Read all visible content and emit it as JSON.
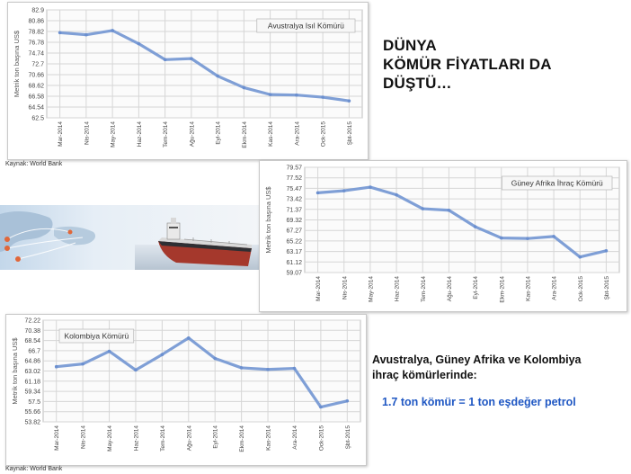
{
  "headline": [
    "DÜNYA",
    "KÖMÜR FİYATLARI DA",
    "DÜŞTÜ…"
  ],
  "note": [
    "Avustralya, Güney Afrika ve Kolombiya",
    "ihraç kömürlerinde:"
  ],
  "equation": "1.7 ton kömür = 1 ton eşdeğer petrol",
  "colors": {
    "line": "#7f9fd6",
    "equation": "#1f57c3",
    "grid": "#d6d6d6",
    "plot_bg": "#fbfbfb"
  },
  "chart_data": [
    {
      "type": "line",
      "title": "Avustralya Isıl Kömürü",
      "ylabel": "Metrik ton başına US$",
      "source": "Kaynak: World Bank",
      "x": [
        "Mar-2014",
        "Nis-2014",
        "May-2014",
        "Haz-2014",
        "Tem-2014",
        "Ağu-2014",
        "Eyl-2014",
        "Ekm-2014",
        "Kas-2014",
        "Ara-2014",
        "Ock-2015",
        "Şbt-2015"
      ],
      "yticks": [
        "82.9",
        "80.86",
        "78.82",
        "76.78",
        "74.74",
        "72.7",
        "70.66",
        "68.62",
        "66.58",
        "64.54",
        "62.5"
      ],
      "ylim": [
        62.5,
        82.9
      ],
      "values": [
        78.6,
        78.2,
        79.0,
        76.5,
        73.5,
        73.7,
        70.4,
        68.2,
        66.9,
        66.8,
        66.4,
        65.7
      ],
      "grid": true,
      "legend": "top-right"
    },
    {
      "type": "line",
      "title": "Güney Afrika İhraç Kömürü",
      "ylabel": "Metrik ton başına US$",
      "x": [
        "Mar-2014",
        "Nis-2014",
        "May-2014",
        "Haz-2014",
        "Tem-2014",
        "Ağu-2014",
        "Eyl-2014",
        "Ekm-2014",
        "Kas-2014",
        "Ara-2014",
        "Ock-2015",
        "Şbt-2015"
      ],
      "yticks": [
        "79.57",
        "77.52",
        "75.47",
        "73.42",
        "71.37",
        "69.32",
        "67.27",
        "65.22",
        "63.17",
        "61.12",
        "59.07"
      ],
      "ylim": [
        59.07,
        79.57
      ],
      "values": [
        74.6,
        75.0,
        75.7,
        74.2,
        71.5,
        71.2,
        68.0,
        65.8,
        65.7,
        66.1,
        62.1,
        63.3
      ],
      "grid": true,
      "legend": "top-right"
    },
    {
      "type": "line",
      "title": "Kolombiya Kömürü",
      "ylabel": "Metrik ton başına US$",
      "source": "Kaynak: World Bank",
      "x": [
        "Mar-2014",
        "Nis-2014",
        "May-2014",
        "Haz-2014",
        "Tem-2014",
        "Ağu-2014",
        "Eyl-2014",
        "Ekm-2014",
        "Kas-2014",
        "Ara-2014",
        "Ock-2015",
        "Şbt-2015"
      ],
      "yticks": [
        "72.22",
        "70.38",
        "68.54",
        "66.7",
        "64.86",
        "63.02",
        "61.18",
        "59.34",
        "57.5",
        "55.66",
        "53.82"
      ],
      "ylim": [
        53.82,
        72.22
      ],
      "values": [
        63.8,
        64.3,
        66.6,
        63.2,
        66.0,
        69.0,
        65.3,
        63.6,
        63.3,
        63.5,
        56.5,
        57.6
      ],
      "grid": true,
      "legend": "top-left"
    }
  ]
}
